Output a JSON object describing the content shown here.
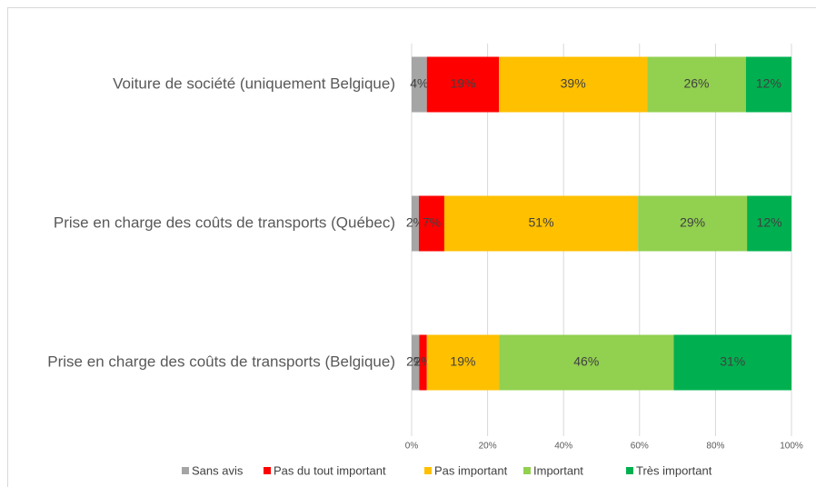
{
  "chart_data": {
    "type": "stacked-bar-horizontal",
    "categories": [
      "Voiture de société (uniquement Belgique)",
      "Prise en charge des coûts de transports (Québec)",
      "Prise en charge des coûts de transports (Belgique)"
    ],
    "series": [
      {
        "name": "Sans avis",
        "color": "#a5a5a5",
        "values": [
          4,
          1.9,
          2
        ],
        "value_labels": [
          "4%",
          "2%",
          "2%"
        ]
      },
      {
        "name": "Pas du tout important",
        "color": "#ff0000",
        "values": [
          19,
          6.7,
          2
        ],
        "value_labels": [
          "19%",
          "7%",
          "2%"
        ]
      },
      {
        "name": "Pas important",
        "color": "#ffc000",
        "values": [
          39,
          51,
          19
        ],
        "value_labels": [
          "39%",
          "51%",
          "19%"
        ]
      },
      {
        "name": "Important",
        "color": "#92d050",
        "values": [
          26,
          28.7,
          46
        ],
        "value_labels": [
          "26%",
          "29%",
          "46%"
        ]
      },
      {
        "name": "Très important",
        "color": "#00b050",
        "values": [
          12,
          11.7,
          31
        ],
        "value_labels": [
          "12%",
          "12%",
          "31%"
        ]
      }
    ],
    "xlim": [
      0,
      100
    ],
    "xticks": [
      {
        "value": 0,
        "label": "0%"
      },
      {
        "value": 20,
        "label": "20%"
      },
      {
        "value": 40,
        "label": "40%"
      },
      {
        "value": 60,
        "label": "60%"
      },
      {
        "value": 80,
        "label": "80%"
      },
      {
        "value": 100,
        "label": "100%"
      }
    ],
    "grid": true,
    "legend": "bottom"
  }
}
